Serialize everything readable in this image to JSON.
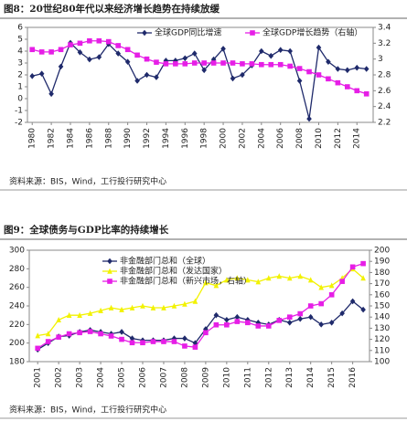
{
  "chart_data": [
    {
      "type": "line",
      "title": "图8：20世纪80年代以来经济增长趋势在持续放缓",
      "x": [
        1980,
        1981,
        1982,
        1983,
        1984,
        1985,
        1986,
        1987,
        1988,
        1989,
        1990,
        1991,
        1992,
        1993,
        1994,
        1995,
        1996,
        1997,
        1998,
        1999,
        2000,
        2001,
        2002,
        2003,
        2004,
        2005,
        2006,
        2007,
        2008,
        2009,
        2010,
        2011,
        2012,
        2013,
        2014,
        2015
      ],
      "xlim": [
        1979.5,
        2015.7
      ],
      "xticks": [
        1980,
        1982,
        1984,
        1986,
        1988,
        1990,
        1992,
        1994,
        1996,
        1998,
        2000,
        2002,
        2004,
        2006,
        2008,
        2010,
        2012,
        2014
      ],
      "ylim": [
        -2,
        6
      ],
      "yticks": [
        -2,
        -1,
        0,
        1,
        2,
        3,
        4,
        5,
        6
      ],
      "y2lim": [
        2.2,
        3.4
      ],
      "y2ticks": [
        2.2,
        2.4,
        2.6,
        2.8,
        3,
        3.2,
        3.4
      ],
      "series": [
        {
          "name": "全球GDP同比增速",
          "color": "#1f2a6b",
          "marker": "diamond",
          "values": [
            1.9,
            2.1,
            0.4,
            2.7,
            4.7,
            3.9,
            3.3,
            3.5,
            4.6,
            3.8,
            3.1,
            1.5,
            2.0,
            1.8,
            3.2,
            3.2,
            3.4,
            3.8,
            2.4,
            3.3,
            4.2,
            1.7,
            2.0,
            2.8,
            4.0,
            3.6,
            4.1,
            4.0,
            1.5,
            -1.7,
            4.3,
            3.1,
            2.5,
            2.4,
            2.6,
            2.5
          ]
        },
        {
          "name": "全球GDP增长趋势（右轴）",
          "color": "#e61ee6",
          "marker": "square",
          "axis": "y2",
          "values": [
            3.12,
            3.09,
            3.09,
            3.12,
            3.18,
            3.2,
            3.23,
            3.23,
            3.22,
            3.17,
            3.12,
            3.05,
            3.0,
            2.96,
            2.94,
            2.94,
            2.94,
            2.95,
            2.95,
            2.95,
            2.95,
            2.95,
            2.94,
            2.94,
            2.93,
            2.93,
            2.93,
            2.91,
            2.88,
            2.84,
            2.8,
            2.75,
            2.7,
            2.65,
            2.6,
            2.56
          ]
        }
      ],
      "source": "资料来源：BIS，Wind，工行投行研究中心"
    },
    {
      "type": "line",
      "title": "图9：全球债务与GDP比率的持续增长",
      "x": [
        2001,
        2001.5,
        2002,
        2002.5,
        2003,
        2003.5,
        2004,
        2004.5,
        2005,
        2005.5,
        2006,
        2006.5,
        2007,
        2007.5,
        2008,
        2008.5,
        2009,
        2009.5,
        2010,
        2010.5,
        2011,
        2011.5,
        2012,
        2012.5,
        2013,
        2013.5,
        2014,
        2014.5,
        2015,
        2015.5,
        2016,
        2016.5
      ],
      "xlim": [
        2000.6,
        2016.8
      ],
      "xticks": [
        2001,
        2002,
        2003,
        2004,
        2005,
        2006,
        2007,
        2008,
        2009,
        2010,
        2011,
        2012,
        2013,
        2014,
        2015,
        2016
      ],
      "ylim": [
        180,
        300
      ],
      "yticks": [
        180,
        200,
        220,
        240,
        260,
        280,
        300
      ],
      "y2lim": [
        100,
        200
      ],
      "y2ticks": [
        100,
        110,
        120,
        130,
        140,
        150,
        160,
        170,
        180,
        190,
        200
      ],
      "series": [
        {
          "name": "非金融部门总和（全球）",
          "color": "#1f2a6b",
          "marker": "diamond",
          "values": [
            193,
            200,
            207,
            208,
            212,
            214,
            212,
            210,
            212,
            205,
            203,
            203,
            203,
            205,
            205,
            200,
            215,
            230,
            225,
            228,
            225,
            222,
            220,
            225,
            222,
            226,
            228,
            220,
            222,
            232,
            245,
            236
          ]
        },
        {
          "name": "非金融部门总和（发达国家）",
          "color": "#f2f200",
          "marker": "triangle",
          "values": [
            208,
            210,
            225,
            230,
            230,
            232,
            235,
            238,
            236,
            238,
            240,
            238,
            238,
            240,
            242,
            245,
            265,
            262,
            268,
            270,
            268,
            266,
            270,
            272,
            270,
            272,
            268,
            260,
            262,
            270,
            280,
            270
          ]
        },
        {
          "name": "非金融部门总和（新兴市场，右轴）",
          "color": "#e61ee6",
          "marker": "square",
          "axis": "y2",
          "values": [
            112,
            118,
            122,
            125,
            126,
            127,
            125,
            123,
            120,
            117,
            117,
            118,
            118,
            118,
            114,
            113,
            126,
            133,
            133,
            136,
            135,
            132,
            132,
            137,
            140,
            143,
            150,
            152,
            160,
            172,
            185,
            188
          ]
        }
      ],
      "source": "资料来源：BIS，Wind，工行投行研究中心"
    }
  ]
}
